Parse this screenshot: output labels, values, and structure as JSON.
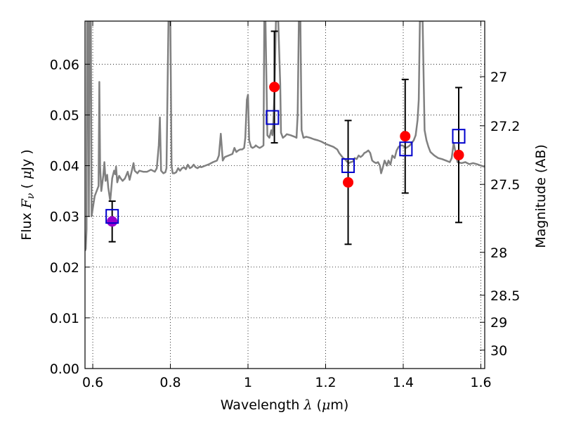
{
  "chart_data": {
    "type": "scatter",
    "xlabel": "Wavelength  λ (μm)",
    "xlabel_parts": [
      "Wavelength ",
      "λ",
      " (",
      "μ",
      "m)"
    ],
    "ylabel": "Flux  Fν  ( μJy )",
    "ylabel_parts": [
      "Flux ",
      "F",
      "ν",
      " ( ",
      "μ",
      "Jy )"
    ],
    "y2label": "Magnitude (AB)",
    "xlim": [
      0.58,
      1.61
    ],
    "ylim": [
      0.0,
      0.0685
    ],
    "grid": true,
    "grid_style": "dotted",
    "x_ticks": [
      {
        "value": 0.6,
        "label": "0.6"
      },
      {
        "value": 0.8,
        "label": "0.8"
      },
      {
        "value": 1.0,
        "label": "1"
      },
      {
        "value": 1.2,
        "label": "1.2"
      },
      {
        "value": 1.4,
        "label": "1.4"
      },
      {
        "value": 1.6,
        "label": "1.6"
      }
    ],
    "y_ticks": [
      {
        "value": 0.0,
        "label": "0.00"
      },
      {
        "value": 0.01,
        "label": "0.01"
      },
      {
        "value": 0.02,
        "label": "0.02"
      },
      {
        "value": 0.03,
        "label": "0.03"
      },
      {
        "value": 0.04,
        "label": "0.04"
      },
      {
        "value": 0.05,
        "label": "0.05"
      },
      {
        "value": 0.06,
        "label": "0.06"
      }
    ],
    "y2_ticks": [
      {
        "value": 27.0,
        "label": "27"
      },
      {
        "value": 27.2,
        "label": "27.2"
      },
      {
        "value": 27.5,
        "label": "27.5"
      },
      {
        "value": 28.0,
        "label": "28"
      },
      {
        "value": 28.5,
        "label": "28.5"
      },
      {
        "value": 29.0,
        "label": "29"
      },
      {
        "value": 30.0,
        "label": "30"
      }
    ],
    "model_spectrum": {
      "color": "#808080",
      "points": [
        [
          0.58,
          0.0232
        ],
        [
          0.582,
          0.0236
        ],
        [
          0.584,
          0.0275
        ],
        [
          0.585,
          0.0685
        ],
        [
          0.588,
          0.0685
        ],
        [
          0.59,
          0.03
        ],
        [
          0.592,
          0.0685
        ],
        [
          0.595,
          0.0685
        ],
        [
          0.597,
          0.03
        ],
        [
          0.6,
          0.0315
        ],
        [
          0.605,
          0.034
        ],
        [
          0.61,
          0.035
        ],
        [
          0.615,
          0.036
        ],
        [
          0.617,
          0.0565
        ],
        [
          0.619,
          0.04
        ],
        [
          0.622,
          0.035
        ],
        [
          0.627,
          0.038
        ],
        [
          0.63,
          0.0407
        ],
        [
          0.633,
          0.037
        ],
        [
          0.637,
          0.0382
        ],
        [
          0.64,
          0.0357
        ],
        [
          0.645,
          0.033
        ],
        [
          0.65,
          0.0375
        ],
        [
          0.655,
          0.039
        ],
        [
          0.658,
          0.0383
        ],
        [
          0.66,
          0.0398
        ],
        [
          0.663,
          0.0367
        ],
        [
          0.668,
          0.038
        ],
        [
          0.672,
          0.0375
        ],
        [
          0.677,
          0.037
        ],
        [
          0.683,
          0.0375
        ],
        [
          0.69,
          0.0388
        ],
        [
          0.695,
          0.0372
        ],
        [
          0.7,
          0.0388
        ],
        [
          0.705,
          0.0405
        ],
        [
          0.708,
          0.039
        ],
        [
          0.715,
          0.0385
        ],
        [
          0.72,
          0.039
        ],
        [
          0.73,
          0.0388
        ],
        [
          0.74,
          0.0388
        ],
        [
          0.75,
          0.0392
        ],
        [
          0.76,
          0.0388
        ],
        [
          0.765,
          0.0395
        ],
        [
          0.77,
          0.044
        ],
        [
          0.773,
          0.0495
        ],
        [
          0.776,
          0.039
        ],
        [
          0.782,
          0.0385
        ],
        [
          0.787,
          0.0387
        ],
        [
          0.79,
          0.0395
        ],
        [
          0.795,
          0.0685
        ],
        [
          0.8,
          0.0685
        ],
        [
          0.803,
          0.04
        ],
        [
          0.806,
          0.0385
        ],
        [
          0.81,
          0.0385
        ],
        [
          0.815,
          0.0387
        ],
        [
          0.82,
          0.0395
        ],
        [
          0.825,
          0.039
        ],
        [
          0.83,
          0.0395
        ],
        [
          0.835,
          0.0397
        ],
        [
          0.84,
          0.0393
        ],
        [
          0.845,
          0.0402
        ],
        [
          0.85,
          0.0395
        ],
        [
          0.855,
          0.0397
        ],
        [
          0.86,
          0.0402
        ],
        [
          0.865,
          0.0397
        ],
        [
          0.87,
          0.0395
        ],
        [
          0.875,
          0.0398
        ],
        [
          0.88,
          0.0397
        ],
        [
          0.89,
          0.04
        ],
        [
          0.9,
          0.0403
        ],
        [
          0.91,
          0.0407
        ],
        [
          0.92,
          0.041
        ],
        [
          0.925,
          0.042
        ],
        [
          0.93,
          0.0463
        ],
        [
          0.935,
          0.041
        ],
        [
          0.94,
          0.0417
        ],
        [
          0.95,
          0.042
        ],
        [
          0.96,
          0.0423
        ],
        [
          0.965,
          0.0435
        ],
        [
          0.97,
          0.0427
        ],
        [
          0.975,
          0.043
        ],
        [
          0.98,
          0.0432
        ],
        [
          0.985,
          0.0432
        ],
        [
          0.99,
          0.0435
        ],
        [
          0.993,
          0.0455
        ],
        [
          0.997,
          0.053
        ],
        [
          1.0,
          0.054
        ],
        [
          1.003,
          0.045
        ],
        [
          1.008,
          0.0437
        ],
        [
          1.012,
          0.0435
        ],
        [
          1.017,
          0.0437
        ],
        [
          1.02,
          0.044
        ],
        [
          1.025,
          0.0437
        ],
        [
          1.03,
          0.0435
        ],
        [
          1.035,
          0.0437
        ],
        [
          1.04,
          0.044
        ],
        [
          1.042,
          0.0685
        ],
        [
          1.045,
          0.0685
        ],
        [
          1.05,
          0.046
        ],
        [
          1.055,
          0.0455
        ],
        [
          1.06,
          0.047
        ],
        [
          1.063,
          0.046
        ],
        [
          1.065,
          0.048
        ],
        [
          1.068,
          0.054
        ],
        [
          1.072,
          0.0685
        ],
        [
          1.078,
          0.0685
        ],
        [
          1.083,
          0.056
        ],
        [
          1.085,
          0.0465
        ],
        [
          1.09,
          0.0455
        ],
        [
          1.095,
          0.0458
        ],
        [
          1.1,
          0.0462
        ],
        [
          1.11,
          0.046
        ],
        [
          1.12,
          0.0457
        ],
        [
          1.125,
          0.0455
        ],
        [
          1.128,
          0.05
        ],
        [
          1.131,
          0.0685
        ],
        [
          1.135,
          0.0685
        ],
        [
          1.138,
          0.047
        ],
        [
          1.143,
          0.0455
        ],
        [
          1.15,
          0.0457
        ],
        [
          1.16,
          0.0455
        ],
        [
          1.17,
          0.0452
        ],
        [
          1.18,
          0.045
        ],
        [
          1.19,
          0.0447
        ],
        [
          1.2,
          0.0443
        ],
        [
          1.21,
          0.044
        ],
        [
          1.22,
          0.0437
        ],
        [
          1.23,
          0.0432
        ],
        [
          1.235,
          0.0425
        ],
        [
          1.24,
          0.042
        ],
        [
          1.245,
          0.0415
        ],
        [
          1.25,
          0.0413
        ],
        [
          1.255,
          0.0408
        ],
        [
          1.26,
          0.0405
        ],
        [
          1.265,
          0.0407
        ],
        [
          1.27,
          0.0408
        ],
        [
          1.275,
          0.0415
        ],
        [
          1.28,
          0.0413
        ],
        [
          1.285,
          0.042
        ],
        [
          1.29,
          0.0417
        ],
        [
          1.295,
          0.042
        ],
        [
          1.3,
          0.0425
        ],
        [
          1.305,
          0.0427
        ],
        [
          1.31,
          0.043
        ],
        [
          1.315,
          0.0425
        ],
        [
          1.32,
          0.041
        ],
        [
          1.325,
          0.0407
        ],
        [
          1.33,
          0.0405
        ],
        [
          1.335,
          0.0407
        ],
        [
          1.34,
          0.04
        ],
        [
          1.343,
          0.0385
        ],
        [
          1.347,
          0.0395
        ],
        [
          1.352,
          0.041
        ],
        [
          1.358,
          0.04
        ],
        [
          1.362,
          0.041
        ],
        [
          1.367,
          0.0402
        ],
        [
          1.372,
          0.042
        ],
        [
          1.378,
          0.0415
        ],
        [
          1.383,
          0.043
        ],
        [
          1.388,
          0.0437
        ],
        [
          1.393,
          0.044
        ],
        [
          1.398,
          0.044
        ],
        [
          1.403,
          0.0437
        ],
        [
          1.407,
          0.0435
        ],
        [
          1.412,
          0.0437
        ],
        [
          1.417,
          0.044
        ],
        [
          1.422,
          0.0445
        ],
        [
          1.427,
          0.045
        ],
        [
          1.432,
          0.046
        ],
        [
          1.437,
          0.049
        ],
        [
          1.44,
          0.053
        ],
        [
          1.443,
          0.0685
        ],
        [
          1.45,
          0.0685
        ],
        [
          1.455,
          0.047
        ],
        [
          1.46,
          0.045
        ],
        [
          1.465,
          0.0437
        ],
        [
          1.47,
          0.0427
        ],
        [
          1.48,
          0.042
        ],
        [
          1.49,
          0.0415
        ],
        [
          1.5,
          0.0413
        ],
        [
          1.51,
          0.041
        ],
        [
          1.52,
          0.0407
        ],
        [
          1.525,
          0.0415
        ],
        [
          1.53,
          0.0445
        ],
        [
          1.535,
          0.0425
        ],
        [
          1.54,
          0.0407
        ],
        [
          1.55,
          0.0405
        ],
        [
          1.56,
          0.0407
        ],
        [
          1.57,
          0.0403
        ],
        [
          1.58,
          0.0405
        ],
        [
          1.59,
          0.0403
        ],
        [
          1.6,
          0.04
        ],
        [
          1.61,
          0.0398
        ]
      ]
    },
    "measured_points": {
      "color": "#ff0000",
      "points": [
        {
          "x": 1.068,
          "y": 0.0555,
          "yerr_low": 0.011,
          "yerr_high": 0.011
        },
        {
          "x": 1.258,
          "y": 0.0367,
          "yerr_low": 0.0122,
          "yerr_high": 0.0122
        },
        {
          "x": 1.405,
          "y": 0.0458,
          "yerr_low": 0.0112,
          "yerr_high": 0.0112
        },
        {
          "x": 1.543,
          "y": 0.0421,
          "yerr_low": 0.0133,
          "yerr_high": 0.0133
        }
      ]
    },
    "upper_limit_point": {
      "color": "#9900cc",
      "x": 0.65,
      "y": 0.029,
      "yerr_low": 0.004,
      "yerr_high": 0.004
    },
    "model_photometry": {
      "color": "#0000cc",
      "marker": "open-square",
      "points": [
        {
          "x": 0.65,
          "y": 0.03
        },
        {
          "x": 1.063,
          "y": 0.0495
        },
        {
          "x": 1.258,
          "y": 0.04
        },
        {
          "x": 1.407,
          "y": 0.0433
        },
        {
          "x": 1.543,
          "y": 0.0458
        }
      ]
    }
  }
}
